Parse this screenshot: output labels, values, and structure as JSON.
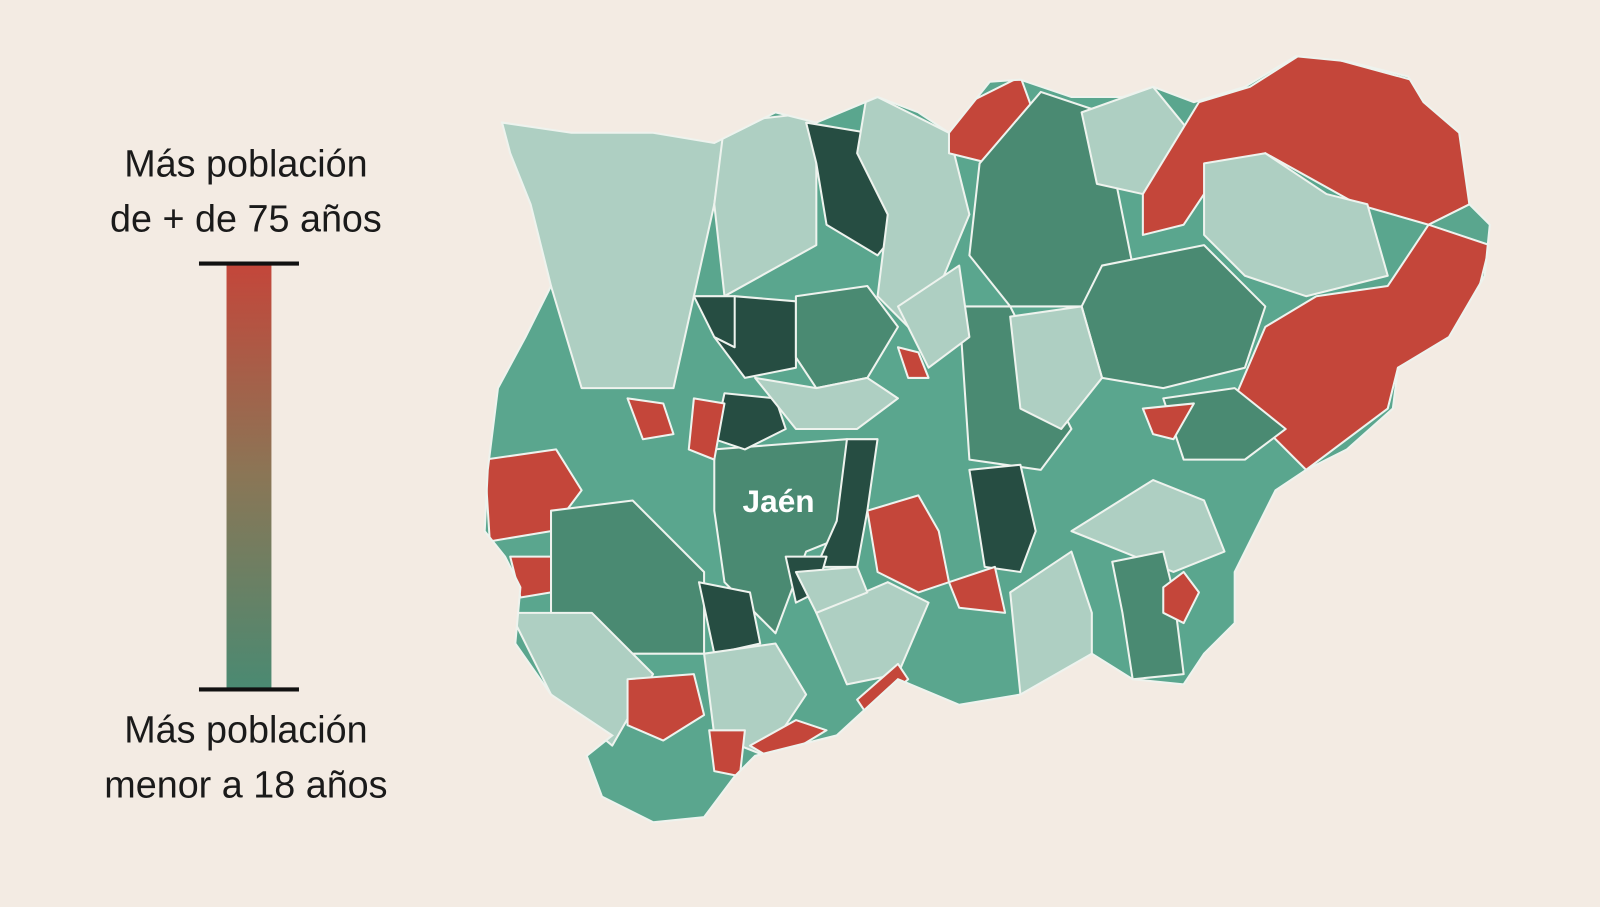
{
  "legend": {
    "top_label": [
      "Más población",
      "de + de 75 años"
    ],
    "bottom_label": [
      "Más población",
      "menor a 18 años"
    ]
  },
  "map": {
    "label": "Jaén"
  }
}
